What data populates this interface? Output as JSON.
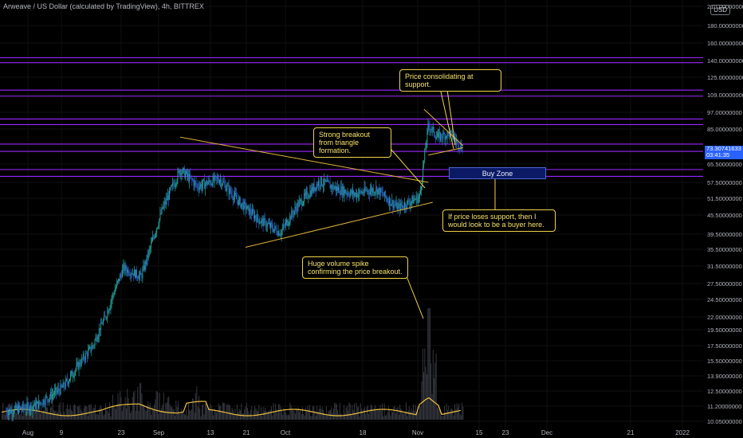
{
  "header": {
    "title": "Arweave / US Dollar (calculated by TradingView), 4h, BITTREX",
    "currency": "USD"
  },
  "colors": {
    "background": "#000000",
    "up_candle": "#26a69a",
    "down_candle": "#2f5fd0",
    "horizontal_level": "#9c27ff",
    "trendline": "#e0b43a",
    "annotation_border": "#f0d448",
    "annotation_text": "#f5e36a",
    "volume_ma": "#f0c040",
    "price_tag": "#2962ff"
  },
  "annotations": {
    "consolidating": "Price consolidating at support.",
    "breakout": "Strong breakout from triangle formation.",
    "loses_support": "If price loses support, then I would look to be a buyer here.",
    "volume_spike": "Huge volume spike confirming the price breakout.",
    "buy_zone": "Buy Zone"
  },
  "price_tag": {
    "price": "73.30741633",
    "countdown": "03:41:35"
  },
  "chart_data": {
    "type": "line",
    "title": "",
    "log_scale": true,
    "x_tick_labels": [
      "Aug",
      "9",
      "23",
      "Sep",
      "13",
      "21",
      "Oct",
      "18",
      "Nov",
      "15",
      "23",
      "Dec",
      "21",
      "2022"
    ],
    "y_tick_labels": [
      "210.00000000",
      "180.00000000",
      "160.00000000",
      "140.00000000",
      "125.00000000",
      "109.00000000",
      "97.00000000",
      "85.00000000",
      "65.50000000",
      "57.50000000",
      "51.50000000",
      "45.50000000",
      "39.50000000",
      "35.50000000",
      "31.50000000",
      "27.50000000",
      "24.50000000",
      "22.00000000",
      "19.50000000",
      "17.50000000",
      "15.50000000",
      "13.90000000",
      "12.50000000",
      "11.20000000",
      "10.05000000"
    ],
    "ylim": [
      10.05,
      210
    ],
    "horizontal_levels": [
      143,
      138,
      113,
      108,
      92,
      88,
      76,
      72,
      63,
      60
    ],
    "series": [
      {
        "x": [
          "Jul 27",
          "Aug 3",
          "Aug 9",
          "Aug 16",
          "Aug 23",
          "Aug 27",
          "Sep 1",
          "Sep 5",
          "Sep 9",
          "Sep 14",
          "Sep 18",
          "Sep 23",
          "Sep 28",
          "Oct 2",
          "Oct 7",
          "Oct 11",
          "Oct 15",
          "Oct 20",
          "Oct 25",
          "Oct 30",
          "Nov 1",
          "Nov 3",
          "Nov 6",
          "Nov 9"
        ],
        "values": [
          10.8,
          11.3,
          12.8,
          17.5,
          31,
          29,
          48,
          63,
          56,
          59,
          51,
          44,
          40,
          49,
          58,
          55,
          53,
          55,
          48,
          52,
          88,
          80,
          82,
          73.3
        ]
      }
    ],
    "trendlines": [
      {
        "from": [
          "Sep 5",
          80
        ],
        "to": [
          "Nov 1",
          57.5
        ]
      },
      {
        "from": [
          "Sep 20",
          36
        ],
        "to": [
          "Nov 2",
          50
        ]
      },
      {
        "from": [
          "Oct 31",
          99
        ],
        "to": [
          "Nov 9",
          75
        ]
      },
      {
        "from": [
          "Nov 1",
          70
        ],
        "to": [
          "Nov 9",
          74
        ]
      }
    ],
    "buy_zone": [
      57.5,
      65.5
    ],
    "volume_peak": "Nov 1"
  }
}
